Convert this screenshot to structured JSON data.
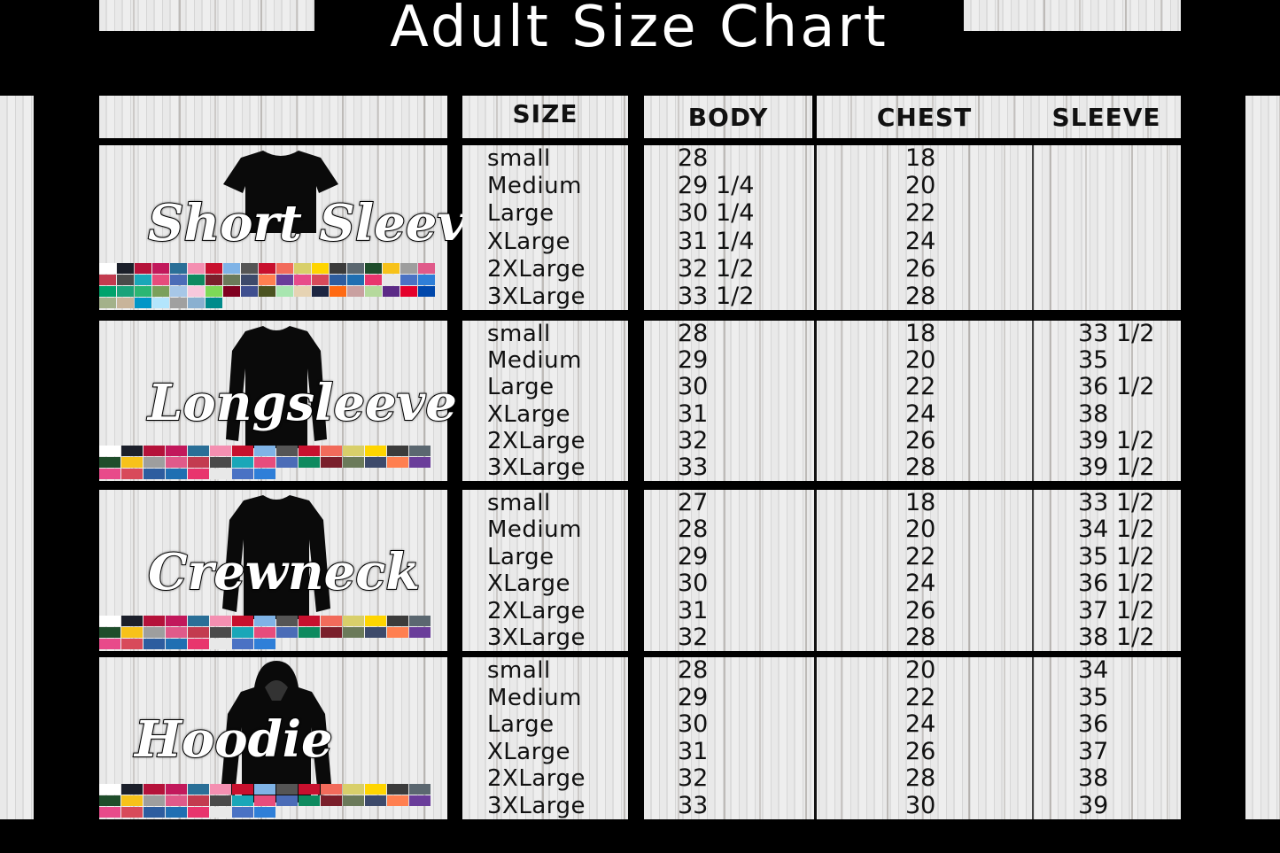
{
  "title": "Adult Size Chart",
  "headers": {
    "size": "SIZE",
    "body": "BODY",
    "chest": "CHEST",
    "sleeve": "SLEEVE"
  },
  "size_labels": [
    "small",
    "Medium",
    "Large",
    "XLarge",
    "2XLarge",
    "3XLarge"
  ],
  "sections": [
    {
      "name": "Short Sleeve",
      "garment": "tshirt-icon",
      "body": [
        "28",
        "29 1/4",
        "30 1/4",
        "31 1/4",
        "32 1/2",
        "33 1/2"
      ],
      "chest": [
        "18",
        "20",
        "22",
        "24",
        "26",
        "28"
      ],
      "sleeve": [
        "",
        "",
        "",
        "",
        "",
        ""
      ]
    },
    {
      "name": "Longsleeve",
      "garment": "longsleeve-icon",
      "body": [
        "28",
        "29",
        "30",
        "31",
        "32",
        "33"
      ],
      "chest": [
        "18",
        "20",
        "22",
        "24",
        "26",
        "28"
      ],
      "sleeve": [
        "33 1/2",
        "35",
        "36 1/2",
        "38",
        "39 1/2",
        "39 1/2"
      ]
    },
    {
      "name": "Crewneck",
      "garment": "crewneck-icon",
      "body": [
        "27",
        "28",
        "29",
        "30",
        "31",
        "32"
      ],
      "chest": [
        "18",
        "20",
        "22",
        "24",
        "26",
        "28"
      ],
      "sleeve": [
        "33 1/2",
        "34 1/2",
        "35 1/2",
        "36 1/2",
        "37 1/2",
        "38 1/2"
      ]
    },
    {
      "name": "Hoodie",
      "garment": "hoodie-icon",
      "body": [
        "28",
        "29",
        "30",
        "31",
        "32",
        "33"
      ],
      "chest": [
        "20",
        "22",
        "24",
        "26",
        "28",
        "30"
      ],
      "sleeve": [
        "34",
        "35",
        "36",
        "37",
        "38",
        "39"
      ]
    }
  ],
  "swatch_colors": [
    "#ffffff",
    "#1b1f2a",
    "#b5123a",
    "#c2185b",
    "#2a6f97",
    "#f48fb1",
    "#c8102e",
    "#7fb3e6",
    "#555555",
    "#c8102e",
    "#f26b5b",
    "#d8cf6a",
    "#ffd500",
    "#3b3b3b",
    "#5b6770",
    "#1f4d2b",
    "#f7c21a",
    "#9e9e9e",
    "#e05a8a",
    "#c33b4f",
    "#4a4a4a",
    "#1aa7b8",
    "#e74c7c",
    "#4b6cb7",
    "#0e8a5f",
    "#7a1f2b",
    "#6b7a5a",
    "#3d4a6b",
    "#ff7f50",
    "#6a3d9a",
    "#e84a8a",
    "#d84a5a",
    "#2d5d9f",
    "#1f6fb2",
    "#e8356d",
    "#e8e8e8",
    "#4a72c4",
    "#2f7fd8",
    "#00a36c",
    "#1aa37a",
    "#2bb673",
    "#7ba05b",
    "#a7c7e7",
    "#f8c8dc",
    "#7ed957",
    "#800020",
    "#3f4f8f",
    "#4b5320",
    "#a8e6b0",
    "#e6d3b3",
    "#1c2541",
    "#ff6a13",
    "#c9a0a0",
    "#b5d99c",
    "#5b2a86",
    "#e4002b",
    "#0047ab",
    "#a3b18a",
    "#c8b49a",
    "#0096c7",
    "#b3e5fc",
    "#a0a0a0",
    "#8ab0d0",
    "#008b8b"
  ]
}
